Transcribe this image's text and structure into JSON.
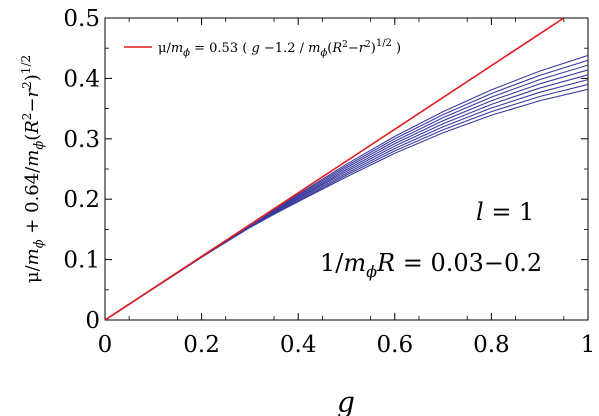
{
  "chart_data": {
    "type": "line",
    "xlabel": "g",
    "ylabel": "μ/m_ϕ + 0.64/m_ϕ(R² − r²)^1/2",
    "xlim": [
      0,
      1
    ],
    "ylim": [
      0,
      0.5
    ],
    "x_ticks": [
      0,
      0.2,
      0.4,
      0.6,
      0.8,
      1
    ],
    "x_tick_labels": [
      "0",
      "0.2",
      "0.4",
      "0.6",
      "0.8",
      "1"
    ],
    "y_ticks": [
      0,
      0.1,
      0.2,
      0.3,
      0.4,
      0.5
    ],
    "y_tick_labels": [
      "0",
      "0.1",
      "0.2",
      "0.3",
      "0.4",
      "0.5"
    ],
    "legend": {
      "position": "top-left",
      "entries": [
        {
          "label": "μ/m_ϕ = 0.53 ( g −1.2 / m_ϕ(R² − r²)^1/2 )",
          "color": "#e41a1c"
        }
      ]
    },
    "annotations": [
      "l = 1",
      "1/m_ϕR = 0.03−0.2"
    ],
    "series": [
      {
        "color": "#e41a1c",
        "x": [
          0,
          0.95
        ],
        "y": [
          0,
          0.5
        ]
      },
      {
        "color": "#3b3b9e",
        "x": [
          0,
          0.1,
          0.2,
          0.3,
          0.35,
          0.4,
          0.5,
          0.6,
          0.7,
          0.8,
          0.9,
          1.0
        ],
        "y": [
          0,
          0.052,
          0.104,
          0.155,
          0.182,
          0.208,
          0.258,
          0.304,
          0.345,
          0.381,
          0.412,
          0.438
        ]
      },
      {
        "color": "#3b3b9e",
        "x": [
          0,
          0.1,
          0.2,
          0.3,
          0.35,
          0.4,
          0.5,
          0.6,
          0.7,
          0.8,
          0.9,
          1.0
        ],
        "y": [
          0,
          0.052,
          0.104,
          0.155,
          0.181,
          0.206,
          0.255,
          0.3,
          0.34,
          0.375,
          0.405,
          0.43
        ]
      },
      {
        "color": "#3b3b9e",
        "x": [
          0,
          0.1,
          0.2,
          0.3,
          0.35,
          0.4,
          0.5,
          0.6,
          0.7,
          0.8,
          0.9,
          1.0
        ],
        "y": [
          0,
          0.052,
          0.104,
          0.155,
          0.18,
          0.204,
          0.252,
          0.296,
          0.335,
          0.369,
          0.398,
          0.422
        ]
      },
      {
        "color": "#3b3b9e",
        "x": [
          0,
          0.1,
          0.2,
          0.3,
          0.35,
          0.4,
          0.5,
          0.6,
          0.7,
          0.8,
          0.9,
          1.0
        ],
        "y": [
          0,
          0.052,
          0.104,
          0.155,
          0.179,
          0.202,
          0.249,
          0.292,
          0.33,
          0.363,
          0.391,
          0.414
        ]
      },
      {
        "color": "#3b3b9e",
        "x": [
          0,
          0.1,
          0.2,
          0.3,
          0.35,
          0.4,
          0.5,
          0.6,
          0.7,
          0.8,
          0.9,
          1.0
        ],
        "y": [
          0,
          0.052,
          0.104,
          0.154,
          0.178,
          0.201,
          0.246,
          0.288,
          0.325,
          0.357,
          0.384,
          0.406
        ]
      },
      {
        "color": "#3b3b9e",
        "x": [
          0,
          0.1,
          0.2,
          0.3,
          0.35,
          0.4,
          0.5,
          0.6,
          0.7,
          0.8,
          0.9,
          1.0
        ],
        "y": [
          0,
          0.052,
          0.104,
          0.154,
          0.177,
          0.199,
          0.243,
          0.284,
          0.32,
          0.351,
          0.377,
          0.398
        ]
      },
      {
        "color": "#3b3b9e",
        "x": [
          0,
          0.1,
          0.2,
          0.3,
          0.35,
          0.4,
          0.5,
          0.6,
          0.7,
          0.8,
          0.9,
          1.0
        ],
        "y": [
          0,
          0.052,
          0.104,
          0.154,
          0.176,
          0.197,
          0.24,
          0.28,
          0.315,
          0.345,
          0.37,
          0.39
        ]
      },
      {
        "color": "#3b3b9e",
        "x": [
          0,
          0.1,
          0.2,
          0.3,
          0.35,
          0.4,
          0.5,
          0.6,
          0.7,
          0.8,
          0.9,
          1.0
        ],
        "y": [
          0,
          0.052,
          0.104,
          0.153,
          0.175,
          0.196,
          0.237,
          0.276,
          0.31,
          0.339,
          0.363,
          0.382
        ]
      }
    ]
  }
}
